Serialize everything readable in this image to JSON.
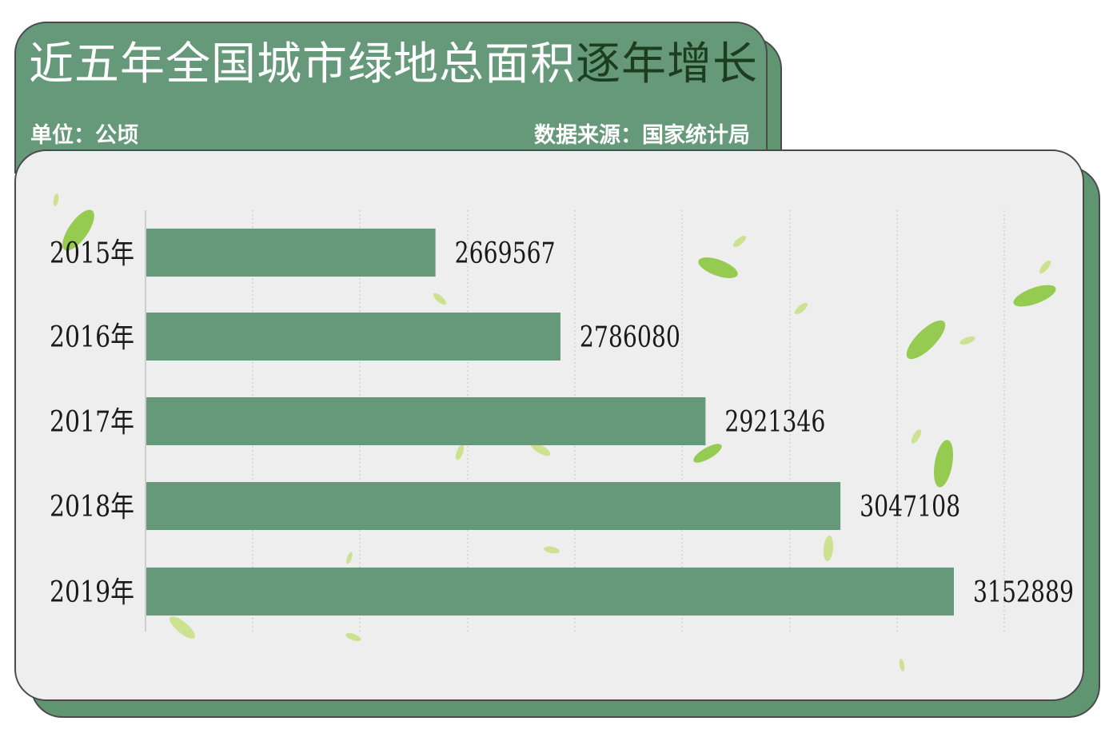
{
  "header": {
    "title_main": "近五年全国城市绿地总面积",
    "title_highlight": "逐年增长",
    "unit": "单位：公顷",
    "source": "数据来源：国家统计局"
  },
  "colors": {
    "bar": "#66987a",
    "header_bg": "#66987a",
    "panel_bg": "#edeeed",
    "highlight_text": "#1d3d1f"
  },
  "chart_data": {
    "type": "bar",
    "orientation": "horizontal",
    "title": "近五年全国城市绿地总面积逐年增长",
    "unit": "单位：公顷",
    "categories": [
      "2015年",
      "2016年",
      "2017年",
      "2018年",
      "2019年"
    ],
    "values": [
      2669567,
      2786080,
      2921346,
      3047108,
      3152889
    ],
    "value_labels": [
      "2669567",
      "2786080",
      "2921346",
      "3047108",
      "3152889"
    ],
    "xlim": [
      2400000,
      3180000
    ],
    "grid": true,
    "legend": "none"
  }
}
